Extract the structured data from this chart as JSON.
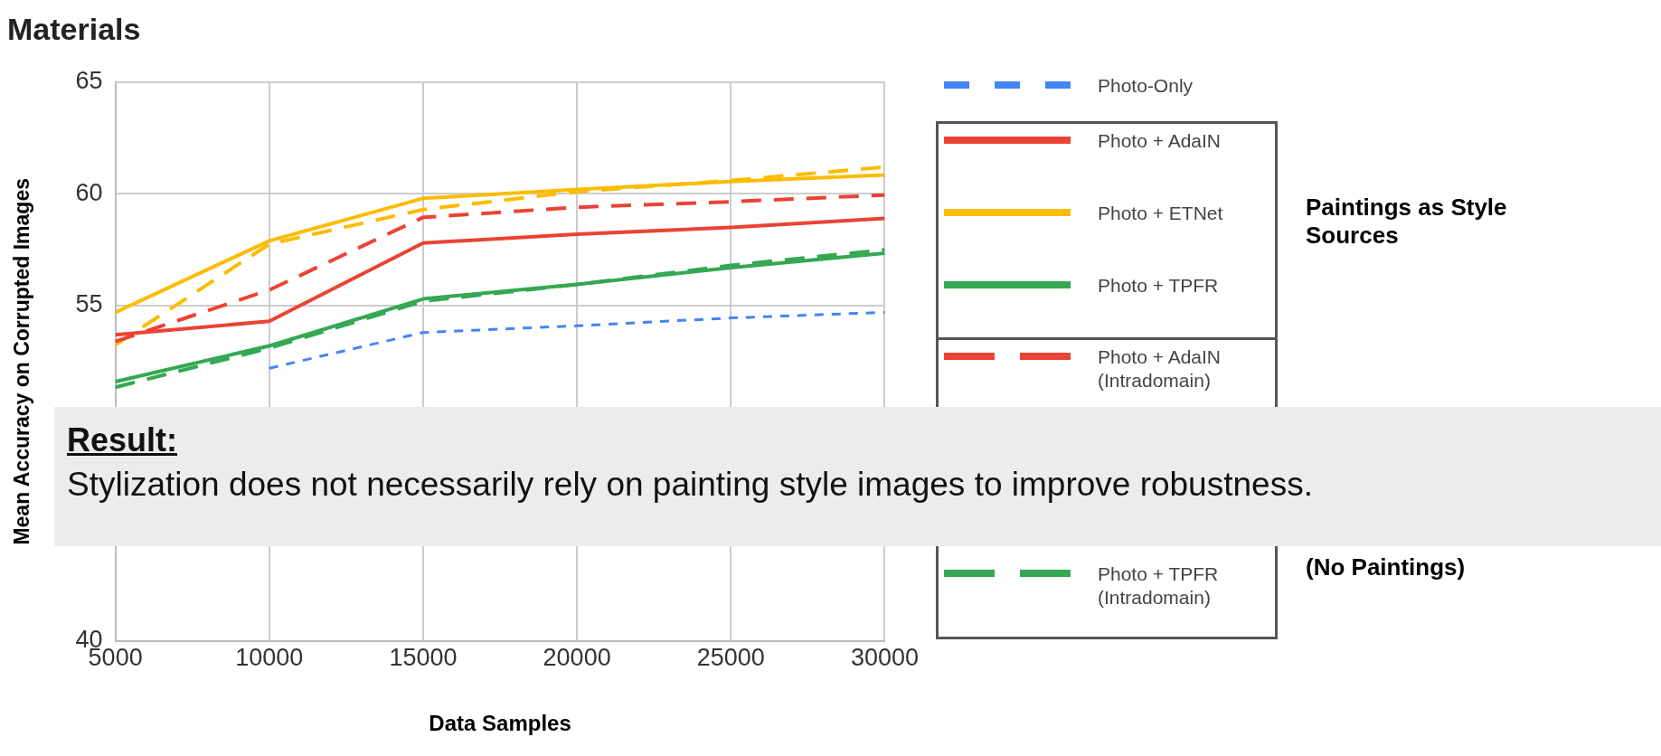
{
  "chart_data": {
    "type": "line",
    "title": "Materials",
    "xlabel": "Data Samples",
    "ylabel": "Mean Accuracy on Corrupted Images",
    "x": [
      5000,
      10000,
      15000,
      20000,
      25000,
      30000
    ],
    "xlim": [
      5000,
      30000
    ],
    "xticks": [
      5000,
      10000,
      15000,
      20000,
      25000,
      30000
    ],
    "ylim": [
      40,
      65
    ],
    "yticks": [
      40,
      55,
      60,
      65
    ],
    "grid": true,
    "legend": "right",
    "marker": "none",
    "series": [
      {
        "name": "Photo-Only",
        "color": "#4285f4",
        "line_style": "dotted",
        "values": [
          null,
          52.2,
          53.8,
          54.1,
          54.45,
          54.7
        ]
      },
      {
        "name": "Photo + AdaIN",
        "color": "#ea4335",
        "line_style": "solid",
        "values": [
          53.7,
          54.3,
          57.8,
          58.2,
          58.5,
          58.9
        ]
      },
      {
        "name": "Photo + ETNet",
        "color": "#fbbc04",
        "line_style": "solid",
        "values": [
          54.7,
          57.9,
          59.8,
          60.2,
          60.55,
          60.85
        ]
      },
      {
        "name": "Photo + TPFR",
        "color": "#34a853",
        "line_style": "solid",
        "values": [
          51.6,
          53.2,
          55.3,
          55.95,
          56.7,
          57.35
        ]
      },
      {
        "name": "Photo + AdaIN (Intradomain)",
        "color": "#ea4335",
        "line_style": "dashed",
        "values": [
          53.4,
          55.7,
          58.95,
          59.4,
          59.65,
          59.95
        ]
      },
      {
        "color": "#fbbc04",
        "line_style": "dashed",
        "values": [
          53.25,
          57.75,
          59.3,
          60.1,
          60.6,
          61.2
        ]
      },
      {
        "name": "Photo + TPFR (Intradomain)",
        "color": "#34a853",
        "line_style": "dashed",
        "values": [
          51.35,
          53.1,
          55.2,
          55.95,
          56.8,
          57.5
        ]
      }
    ],
    "annotations": [
      "Paintings as Style Sources",
      "(No Paintings)",
      "Result:",
      "Stylization does not necessarily rely on painting style images to improve robustness."
    ]
  }
}
